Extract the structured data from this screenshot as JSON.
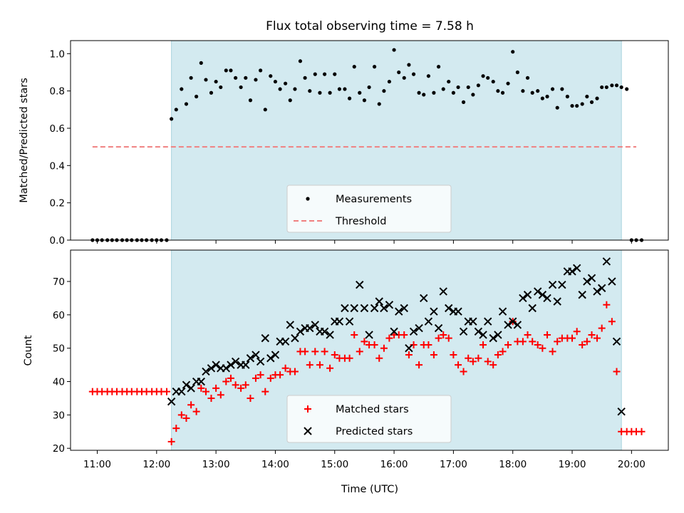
{
  "chart_data": {
    "type": "scatter",
    "title": "Flux total observing time = 7.58 h",
    "xlabel": "Time (UTC)",
    "x_ticks": [
      "11:00",
      "12:00",
      "13:00",
      "14:00",
      "15:00",
      "16:00",
      "17:00",
      "18:00",
      "19:00",
      "20:00"
    ],
    "x_tick_hours": [
      11,
      12,
      13,
      14,
      15,
      16,
      17,
      18,
      19,
      20
    ],
    "xlim_hours": [
      10.55,
      20.62
    ],
    "observing_window_hours": [
      12.25,
      19.83
    ],
    "observing_window_color": "#d3eaf0",
    "panels": [
      {
        "ylabel": "Matched/Predicted stars",
        "ylim": [
          0,
          1.07
        ],
        "yticks": [
          "0.0",
          "0.2",
          "0.4",
          "0.6",
          "0.8",
          "1.0"
        ],
        "ytick_values": [
          0,
          0.2,
          0.4,
          0.6,
          0.8,
          1.0
        ],
        "legend": {
          "placement": "lower-center",
          "entries": [
            "Measurements",
            "Threshold"
          ]
        },
        "threshold": {
          "name": "Threshold",
          "value": 0.5,
          "x_range": [
            10.92,
            20.08
          ],
          "color": "#f08080",
          "style": "dashed"
        },
        "series": [
          {
            "name": "Measurements",
            "marker": "dot",
            "color": "#000000",
            "x": [
              10.92,
              11.0,
              11.08,
              11.17,
              11.25,
              11.33,
              11.42,
              11.5,
              11.58,
              11.67,
              11.75,
              11.83,
              11.92,
              12.0,
              12.08,
              12.17,
              12.25,
              12.33,
              12.42,
              12.5,
              12.58,
              12.67,
              12.75,
              12.83,
              12.92,
              13.0,
              13.08,
              13.17,
              13.25,
              13.33,
              13.42,
              13.5,
              13.58,
              13.67,
              13.75,
              13.83,
              13.92,
              14.0,
              14.08,
              14.17,
              14.25,
              14.33,
              14.42,
              14.5,
              14.58,
              14.67,
              14.75,
              14.83,
              14.92,
              15.0,
              15.08,
              15.17,
              15.25,
              15.33,
              15.42,
              15.5,
              15.58,
              15.67,
              15.75,
              15.83,
              15.92,
              16.0,
              16.08,
              16.17,
              16.25,
              16.33,
              16.42,
              16.5,
              16.58,
              16.67,
              16.75,
              16.83,
              16.92,
              17.0,
              17.08,
              17.17,
              17.25,
              17.33,
              17.42,
              17.5,
              17.58,
              17.67,
              17.75,
              17.83,
              17.92,
              18.0,
              18.08,
              18.17,
              18.25,
              18.33,
              18.42,
              18.5,
              18.58,
              18.67,
              18.75,
              18.83,
              18.92,
              19.0,
              19.08,
              19.17,
              19.25,
              19.33,
              19.42,
              19.5,
              19.58,
              19.67,
              19.75,
              19.83,
              19.92,
              20.0,
              20.08,
              20.17
            ],
            "y": [
              0,
              0,
              0,
              0,
              0,
              0,
              0,
              0,
              0,
              0,
              0,
              0,
              0,
              0,
              0,
              0,
              0.65,
              0.7,
              0.81,
              0.73,
              0.87,
              0.77,
              0.95,
              0.86,
              0.79,
              0.85,
              0.82,
              0.91,
              0.91,
              0.87,
              0.82,
              0.87,
              0.75,
              0.86,
              0.91,
              0.7,
              0.88,
              0.85,
              0.81,
              0.84,
              0.75,
              0.81,
              0.96,
              0.87,
              0.8,
              0.89,
              0.79,
              0.89,
              0.79,
              0.89,
              0.81,
              0.81,
              0.76,
              0.93,
              0.79,
              0.75,
              0.82,
              0.93,
              0.73,
              0.8,
              0.85,
              1.02,
              0.9,
              0.87,
              0.94,
              0.89,
              0.79,
              0.78,
              0.88,
              0.79,
              0.93,
              0.81,
              0.85,
              0.79,
              0.82,
              0.74,
              0.82,
              0.78,
              0.83,
              0.88,
              0.87,
              0.85,
              0.8,
              0.79,
              0.84,
              1.01,
              0.9,
              0.8,
              0.87,
              0.79,
              0.8,
              0.76,
              0.77,
              0.81,
              0.71,
              0.81,
              0.77,
              0.72,
              0.72,
              0.73,
              0.77,
              0.74,
              0.76,
              0.82,
              0.82,
              0.83,
              0.83,
              0.82,
              0.81,
              0,
              0,
              0
            ]
          }
        ]
      },
      {
        "ylabel": "Count",
        "ylim": [
          19.4,
          79.4
        ],
        "yticks": [
          "20",
          "30",
          "40",
          "50",
          "60",
          "70"
        ],
        "ytick_values": [
          20,
          30,
          40,
          50,
          60,
          70
        ],
        "legend": {
          "placement": "lower-center",
          "entries": [
            "Matched stars",
            "Predicted stars"
          ]
        },
        "series": [
          {
            "name": "Matched stars",
            "marker": "plus",
            "color": "#ff0000",
            "x": [
              10.92,
              11.0,
              11.08,
              11.17,
              11.25,
              11.33,
              11.42,
              11.5,
              11.58,
              11.67,
              11.75,
              11.83,
              11.92,
              12.0,
              12.08,
              12.17,
              12.25,
              12.33,
              12.42,
              12.5,
              12.58,
              12.67,
              12.75,
              12.83,
              12.92,
              13.0,
              13.08,
              13.17,
              13.25,
              13.33,
              13.42,
              13.5,
              13.58,
              13.67,
              13.75,
              13.83,
              13.92,
              14.0,
              14.08,
              14.17,
              14.25,
              14.33,
              14.42,
              14.5,
              14.58,
              14.67,
              14.75,
              14.83,
              14.92,
              15.0,
              15.08,
              15.17,
              15.25,
              15.33,
              15.42,
              15.5,
              15.58,
              15.67,
              15.75,
              15.83,
              15.92,
              16.0,
              16.08,
              16.17,
              16.25,
              16.33,
              16.42,
              16.5,
              16.58,
              16.67,
              16.75,
              16.83,
              16.92,
              17.0,
              17.08,
              17.17,
              17.25,
              17.33,
              17.42,
              17.5,
              17.58,
              17.67,
              17.75,
              17.83,
              17.92,
              18.0,
              18.08,
              18.17,
              18.25,
              18.33,
              18.42,
              18.5,
              18.58,
              18.67,
              18.75,
              18.83,
              18.92,
              19.0,
              19.08,
              19.17,
              19.25,
              19.33,
              19.42,
              19.5,
              19.58,
              19.67,
              19.75,
              19.83,
              19.92,
              20.0,
              20.08,
              20.17
            ],
            "y": [
              37,
              37,
              37,
              37,
              37,
              37,
              37,
              37,
              37,
              37,
              37,
              37,
              37,
              37,
              37,
              37,
              22,
              26,
              30,
              29,
              33,
              31,
              38,
              37,
              35,
              38,
              36,
              40,
              41,
              39,
              38,
              39,
              35,
              41,
              42,
              37,
              41,
              42,
              42,
              44,
              43,
              43,
              49,
              49,
              45,
              49,
              45,
              49,
              44,
              48,
              47,
              47,
              47,
              54,
              49,
              52,
              51,
              51,
              47,
              50,
              53,
              54,
              54,
              54,
              48,
              51,
              45,
              51,
              51,
              48,
              53,
              54,
              53,
              48,
              45,
              43,
              47,
              46,
              47,
              51,
              46,
              45,
              48,
              49,
              51,
              58,
              52,
              52,
              54,
              52,
              51,
              50,
              54,
              49,
              52,
              53,
              53,
              53,
              55,
              51,
              52,
              54,
              53,
              56,
              63,
              58,
              43,
              25,
              25,
              25,
              25,
              25
            ]
          },
          {
            "name": "Predicted stars",
            "marker": "x",
            "color": "#000000",
            "x": [
              12.25,
              12.33,
              12.42,
              12.5,
              12.58,
              12.67,
              12.75,
              12.83,
              12.92,
              13.0,
              13.08,
              13.17,
              13.25,
              13.33,
              13.42,
              13.5,
              13.58,
              13.67,
              13.75,
              13.83,
              13.92,
              14.0,
              14.08,
              14.17,
              14.25,
              14.33,
              14.42,
              14.5,
              14.58,
              14.67,
              14.75,
              14.83,
              14.92,
              15.0,
              15.08,
              15.17,
              15.25,
              15.33,
              15.42,
              15.5,
              15.58,
              15.67,
              15.75,
              15.83,
              15.92,
              16.0,
              16.08,
              16.17,
              16.25,
              16.33,
              16.42,
              16.5,
              16.58,
              16.67,
              16.75,
              16.83,
              16.92,
              17.0,
              17.08,
              17.17,
              17.25,
              17.33,
              17.42,
              17.5,
              17.58,
              17.67,
              17.75,
              17.83,
              17.92,
              18.0,
              18.08,
              18.17,
              18.25,
              18.33,
              18.42,
              18.5,
              18.58,
              18.67,
              18.75,
              18.83,
              18.92,
              19.0,
              19.08,
              19.17,
              19.25,
              19.33,
              19.42,
              19.5,
              19.58,
              19.67,
              19.75,
              19.83
            ],
            "y": [
              34,
              37,
              37,
              39,
              38,
              40,
              40,
              43,
              44,
              45,
              44,
              44,
              45,
              46,
              45,
              45,
              47,
              48,
              46,
              53,
              47,
              48,
              52,
              52,
              57,
              53,
              55,
              56,
              56,
              57,
              55,
              55,
              54,
              58,
              58,
              62,
              58,
              62,
              69,
              62,
              54,
              62,
              64,
              62,
              63,
              55,
              61,
              62,
              50,
              55,
              56,
              65,
              58,
              61,
              56,
              67,
              62,
              61,
              61,
              55,
              58,
              58,
              55,
              54,
              58,
              53,
              54,
              61,
              57,
              58,
              57,
              65,
              66,
              62,
              67,
              66,
              65,
              69,
              64,
              69,
              73,
              73,
              74,
              66,
              70,
              71,
              67,
              68,
              76,
              70,
              52,
              31
            ]
          }
        ]
      }
    ]
  }
}
